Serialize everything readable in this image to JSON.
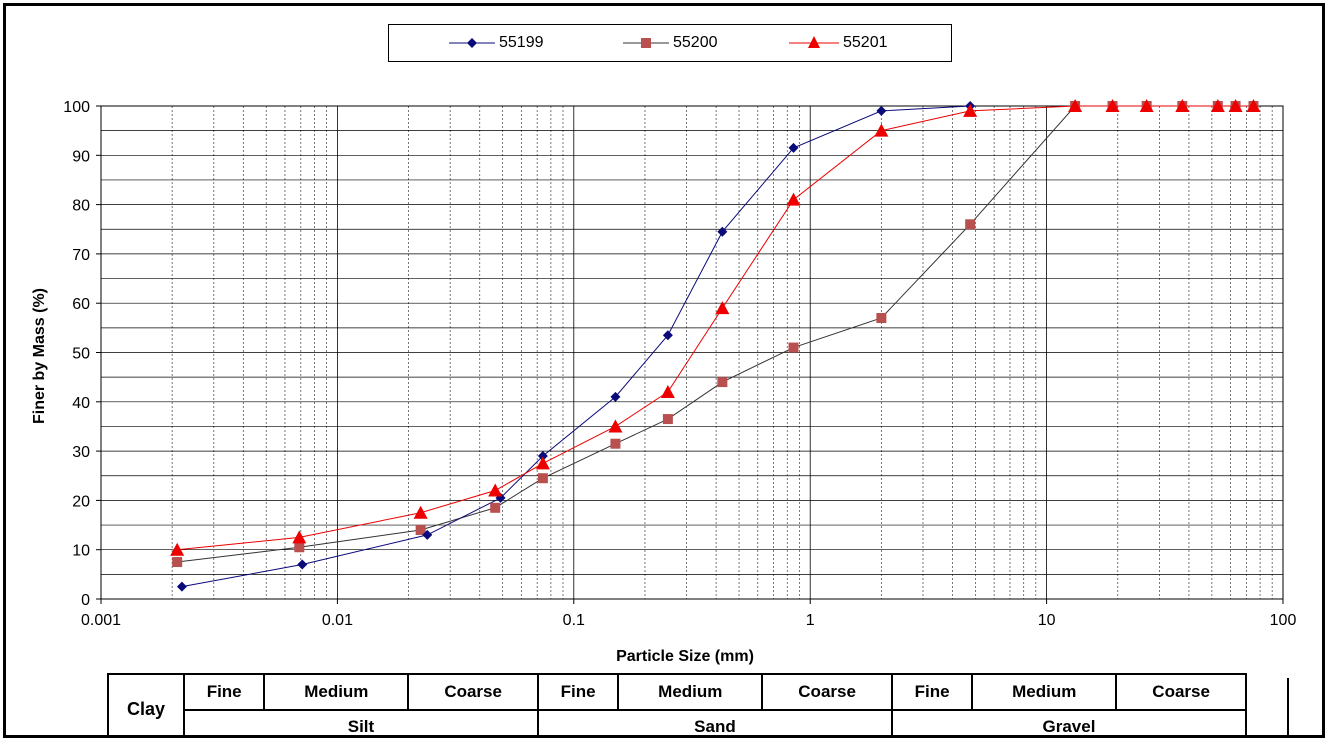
{
  "colors": {
    "s55199": "#0a0a7a",
    "s55200": "#b85050",
    "s55201": "#ee0000",
    "line55200": "#333333"
  },
  "chart_data": {
    "type": "scatter",
    "xscale": "log",
    "xlim": [
      0.001,
      100
    ],
    "ylim": [
      0,
      100
    ],
    "xlabel": "Particle Size (mm)",
    "ylabel": "Finer by Mass (%)",
    "xticks": [
      "0.001",
      "0.01",
      "0.1",
      "1",
      "10",
      "100"
    ],
    "yticks": [
      "0",
      "10",
      "20",
      "30",
      "40",
      "50",
      "60",
      "70",
      "80",
      "90",
      "100"
    ],
    "grid": true,
    "legend_position": "top-center",
    "series": [
      {
        "name": "55199",
        "marker": "diamond",
        "x": [
          0.0022,
          0.0071,
          0.024,
          0.049,
          0.074,
          0.15,
          0.25,
          0.425,
          0.85,
          2.0,
          4.75
        ],
        "y": [
          2.5,
          7,
          13,
          20.5,
          29,
          41,
          53.5,
          74.5,
          91.5,
          99,
          100
        ]
      },
      {
        "name": "55200",
        "marker": "square",
        "x": [
          0.0021,
          0.0069,
          0.0225,
          0.0465,
          0.074,
          0.15,
          0.25,
          0.425,
          0.85,
          2.0,
          4.75,
          13.2,
          19,
          26.5,
          37.5,
          53,
          63,
          75
        ],
        "y": [
          7.5,
          10.5,
          14,
          18.5,
          24.5,
          31.5,
          36.5,
          44,
          51,
          57,
          76,
          100,
          100,
          100,
          100,
          100,
          100,
          100
        ]
      },
      {
        "name": "55201",
        "marker": "triangle",
        "x": [
          0.0021,
          0.0069,
          0.0225,
          0.0465,
          0.074,
          0.15,
          0.25,
          0.425,
          0.85,
          2.0,
          4.75,
          13.2,
          19,
          26.5,
          37.5,
          53,
          63,
          75
        ],
        "y": [
          10,
          12.5,
          17.5,
          22,
          27.5,
          35,
          42,
          59,
          81,
          95,
          99,
          100,
          100,
          100,
          100,
          100,
          100,
          100
        ]
      }
    ]
  },
  "classification": {
    "clay": "Clay",
    "subs": [
      "Fine",
      "Medium",
      "Coarse",
      "Fine",
      "Medium",
      "Coarse",
      "Fine",
      "Medium",
      "Coarse"
    ],
    "mains": [
      "Silt",
      "Sand",
      "Gravel"
    ]
  }
}
